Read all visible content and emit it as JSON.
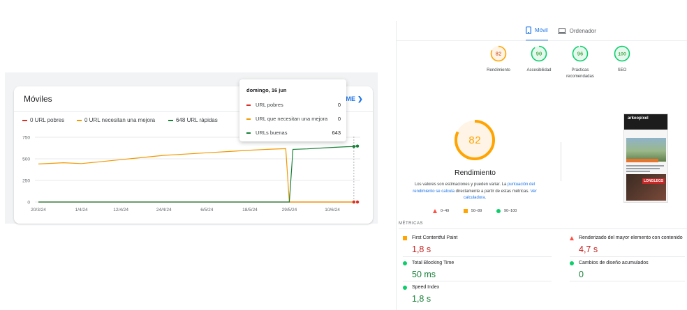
{
  "gsc": {
    "title": "Móviles",
    "more_link": "ABRIR INFORME",
    "legend": [
      {
        "label": "0 URL pobres",
        "color": "#d93025"
      },
      {
        "label": "0 URL necesitan una mejora",
        "color": "#f29900"
      },
      {
        "label": "648 URL rápidas",
        "color": "#188038"
      }
    ],
    "tooltip": {
      "title": "domingo, 16 jun",
      "rows": [
        {
          "label": "URL pobres",
          "value": "0",
          "color": "#d93025"
        },
        {
          "label": "URL que necesitan una mejora",
          "value": "0",
          "color": "#f29900"
        },
        {
          "label": "URLs buenas",
          "value": "643",
          "color": "#188038"
        }
      ]
    }
  },
  "chart_data": {
    "type": "line",
    "categories": [
      "20/3/24",
      "1/4/24",
      "12/4/24",
      "24/4/24",
      "6/5/24",
      "18/5/24",
      "29/5/24",
      "10/6/24"
    ],
    "yticks": [
      0,
      250,
      500,
      750
    ],
    "ylim": [
      0,
      750
    ],
    "grid": true,
    "legend_position": "top-left",
    "series": [
      {
        "name": "URL pobres",
        "color": "#d93025",
        "points": [
          [
            "20/3/24",
            0
          ],
          [
            "29/5/24",
            0
          ],
          [
            "16/6/24",
            0
          ]
        ]
      },
      {
        "name": "URL necesitan una mejora",
        "color": "#f29900",
        "points": [
          [
            "20/3/24",
            440
          ],
          [
            "27/3/24",
            455
          ],
          [
            "1/4/24",
            445
          ],
          [
            "6/4/24",
            465
          ],
          [
            "12/4/24",
            490
          ],
          [
            "18/4/24",
            515
          ],
          [
            "24/4/24",
            540
          ],
          [
            "30/4/24",
            555
          ],
          [
            "6/5/24",
            570
          ],
          [
            "12/5/24",
            585
          ],
          [
            "18/5/24",
            600
          ],
          [
            "24/5/24",
            612
          ],
          [
            "28/5/24",
            618
          ],
          [
            "29/5/24",
            0
          ],
          [
            "16/6/24",
            0
          ]
        ]
      },
      {
        "name": "URLs buenas",
        "color": "#188038",
        "points": [
          [
            "20/3/24",
            0
          ],
          [
            "29/5/24",
            0
          ],
          [
            "30/5/24",
            610
          ],
          [
            "3/6/24",
            615
          ],
          [
            "7/6/24",
            625
          ],
          [
            "10/6/24",
            632
          ],
          [
            "14/6/24",
            640
          ],
          [
            "16/6/24",
            643
          ],
          [
            "17/6/24",
            648
          ]
        ]
      }
    ]
  },
  "pagespeed": {
    "tabs": [
      {
        "label": "Móvil",
        "icon": "mobile-icon",
        "active": true
      },
      {
        "label": "Ordenador",
        "icon": "desktop-icon",
        "active": false
      }
    ],
    "scores": [
      {
        "value": 82,
        "label": "Rendimiento",
        "color": "#f29900"
      },
      {
        "value": 90,
        "label": "Accesibilidad",
        "color": "#0cce6b"
      },
      {
        "value": 96,
        "label": "Prácticas recomendadas",
        "color": "#0cce6b"
      },
      {
        "value": 100,
        "label": "SEO",
        "color": "#0cce6b"
      }
    ],
    "main_score": 82,
    "main_title": "Rendimiento",
    "explain_pre": "Los valores son estimaciones y pueden variar. La ",
    "explain_link1": "puntuación del rendimiento se calcula",
    "explain_mid": " directamente a partir de estas métricas. ",
    "explain_link2": "Ver calculadora.",
    "scale": [
      {
        "range": "0–49",
        "color": "#ff4e42",
        "shape": "triangle"
      },
      {
        "range": "50–89",
        "color": "#ffa400",
        "shape": "square"
      },
      {
        "range": "90–100",
        "color": "#0cce6b",
        "shape": "circle"
      }
    ],
    "screenshot_brand": "arkeopixel",
    "screenshot_badge": "LONGLEGS",
    "metrics_label": "MÉTRICAS",
    "metrics": [
      {
        "name": "First Contentful Paint",
        "value": "1,8 s",
        "color": "#c5221f",
        "shape": "square",
        "shape_color": "#ffa400"
      },
      {
        "name": "Renderizado del mayor elemento con contenido",
        "value": "4,7 s",
        "color": "#c5221f",
        "shape": "triangle",
        "shape_color": "#ff4e42"
      },
      {
        "name": "Total Blocking Time",
        "value": "50 ms",
        "color": "#188038",
        "shape": "circle",
        "shape_color": "#0cce6b"
      },
      {
        "name": "Cambios de diseño acumulados",
        "value": "0",
        "color": "#188038",
        "shape": "circle",
        "shape_color": "#0cce6b"
      },
      {
        "name": "Speed Index",
        "value": "1,8 s",
        "color": "#188038",
        "shape": "circle",
        "shape_color": "#0cce6b"
      }
    ]
  }
}
